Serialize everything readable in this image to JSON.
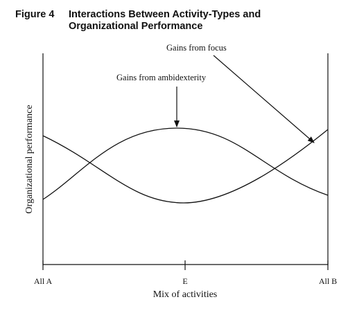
{
  "figure": {
    "label": "Figure 4",
    "title_line1": "Interactions Between Activity-Types and",
    "title_line2": "Organizational Performance"
  },
  "annotations": {
    "gains_focus": "Gains from focus",
    "gains_ambidexterity": "Gains from ambidexterity"
  },
  "axes": {
    "ylabel": "Organizational performance",
    "xlabel": "Mix of activities",
    "x_ticks": [
      "All A",
      "E",
      "All B"
    ]
  },
  "colors": {
    "ink": "#111111",
    "background": "#ffffff"
  }
}
